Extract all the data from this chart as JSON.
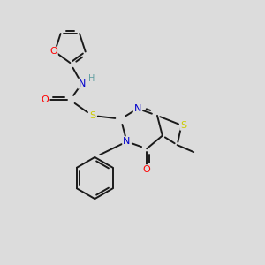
{
  "bg_color": "#dcdcdc",
  "atom_colors": {
    "O": "#ff0000",
    "N": "#0000cd",
    "S": "#cccc00",
    "C": "#000000",
    "H": "#5f9ea0"
  },
  "bond_color": "#1a1a1a",
  "lw": 1.4
}
